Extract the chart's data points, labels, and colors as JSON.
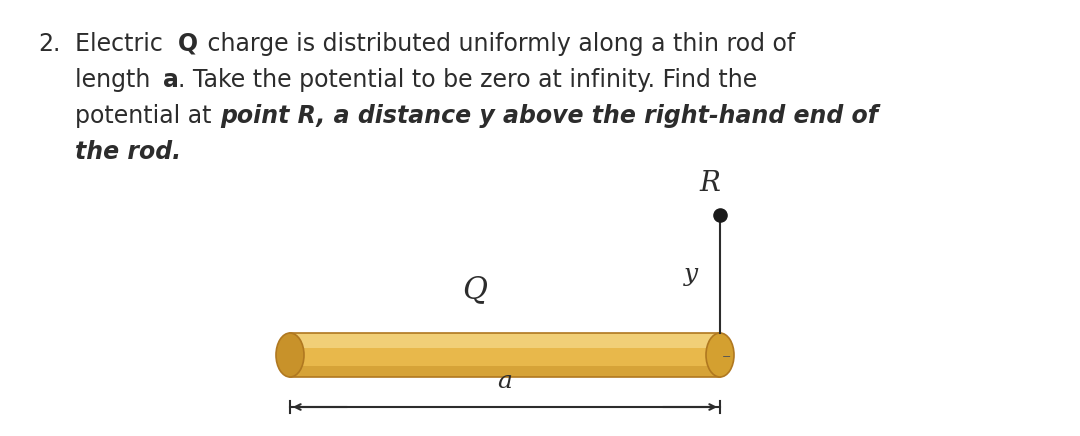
{
  "background_color": "#ffffff",
  "font_size_main": 17,
  "rod_color_main": "#E8B84B",
  "rod_color_highlight": "#F5D98B",
  "rod_color_shadow": "#C8922A",
  "rod_color_end_face": "#D4A030",
  "rod_outline": "#B07820",
  "label_R": "R",
  "label_y": "y",
  "label_Q": "Q",
  "label_a": "a",
  "line_color": "#2c2c2c",
  "text_color": "#2c2c2c",
  "point_color": "#1a1a1a"
}
